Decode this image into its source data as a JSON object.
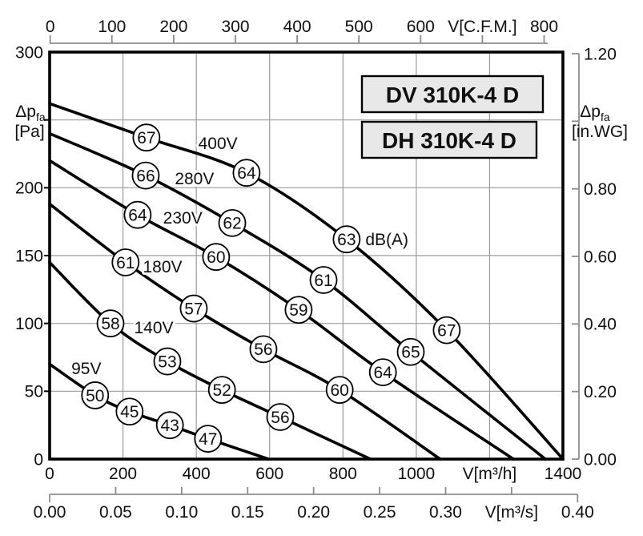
{
  "header": {
    "models": [
      "DV 310K-4 D",
      "DH 310K-4 D"
    ]
  },
  "chart_data": {
    "type": "line",
    "description": "Fan performance curves: pressure drop vs. volume flow for six supply voltages, with sound level markers",
    "noise_unit_label": "dB(A)",
    "axes": {
      "top": {
        "unit": "C.F.M.",
        "values": [
          0,
          100,
          200,
          300,
          400,
          500,
          600,
          700,
          800
        ],
        "labels": [
          "0",
          "100",
          "200",
          "300",
          "400",
          "500",
          "600",
          "V[C.F.M.]",
          "800"
        ]
      },
      "left": {
        "unit": "Pa",
        "title_main": "Δp",
        "title_sub": "fa",
        "title_unit": "[Pa]",
        "values": [
          0,
          50,
          100,
          150,
          200,
          250,
          300
        ],
        "labels": [
          "0",
          "50",
          "100",
          "150",
          "200",
          "",
          "300"
        ],
        "range": [
          0,
          300
        ]
      },
      "right": {
        "unit": "in.WG",
        "title_main": "Δp",
        "title_sub": "fa",
        "title_unit": "[in.WG]",
        "values": [
          0,
          0.2,
          0.4,
          0.6,
          0.8,
          1.0,
          1.2
        ],
        "labels": [
          "0.00",
          "0.20",
          "0.40",
          "0.60",
          "0.80",
          "",
          "1.20"
        ],
        "range": [
          0,
          1.2
        ]
      },
      "bottom": {
        "unit": "m³/h",
        "values": [
          0,
          200,
          400,
          600,
          800,
          1000,
          1200,
          1400
        ],
        "labels": [
          "0",
          "200",
          "400",
          "600",
          "800",
          "1000",
          "V[m³/h]",
          "1400"
        ],
        "range": [
          0,
          1400
        ]
      },
      "bottom2": {
        "unit": "m³/s",
        "values": [
          0,
          0.05,
          0.1,
          0.15,
          0.2,
          0.25,
          0.3,
          0.35,
          0.4
        ],
        "labels": [
          "0.00",
          "0.05",
          "0.10",
          "0.15",
          "0.20",
          "0.25",
          "0.30",
          "V[m³/s]",
          "0.40"
        ]
      }
    },
    "grid": {
      "vertical_m3h": [
        200,
        400,
        600,
        800,
        1000,
        1200
      ],
      "horizontal_pa": [
        50,
        100,
        150,
        200,
        250
      ]
    },
    "series": [
      {
        "name": "400V",
        "label_at": [
          459,
          233
        ],
        "points": [
          [
            0,
            262
          ],
          [
            264,
            237
          ],
          [
            537,
            211
          ],
          [
            810,
            162
          ],
          [
            1083,
            95
          ],
          [
            1400,
            0
          ]
        ],
        "markers": [
          {
            "v": 264,
            "p": 237,
            "db": 67
          },
          {
            "v": 537,
            "p": 211,
            "db": 64
          },
          {
            "v": 810,
            "p": 162,
            "db": 63,
            "suffix": "dB(A)"
          },
          {
            "v": 1083,
            "p": 95,
            "db": 67
          }
        ]
      },
      {
        "name": "280V",
        "label_at": [
          395,
          207
        ],
        "points": [
          [
            0,
            240
          ],
          [
            262,
            209
          ],
          [
            498,
            174
          ],
          [
            747,
            132
          ],
          [
            985,
            79
          ],
          [
            1352,
            0
          ]
        ],
        "markers": [
          {
            "v": 262,
            "p": 209,
            "db": 66
          },
          {
            "v": 498,
            "p": 174,
            "db": 62
          },
          {
            "v": 747,
            "p": 132,
            "db": 61
          },
          {
            "v": 985,
            "p": 79,
            "db": 65
          }
        ]
      },
      {
        "name": "230V",
        "label_at": [
          363,
          178
        ],
        "points": [
          [
            0,
            220
          ],
          [
            240,
            180
          ],
          [
            454,
            149
          ],
          [
            679,
            110
          ],
          [
            909,
            64
          ],
          [
            1265,
            0
          ]
        ],
        "markers": [
          {
            "v": 240,
            "p": 180,
            "db": 64
          },
          {
            "v": 454,
            "p": 149,
            "db": 60
          },
          {
            "v": 679,
            "p": 110,
            "db": 59
          },
          {
            "v": 909,
            "p": 64,
            "db": 64
          }
        ]
      },
      {
        "name": "180V",
        "label_at": [
          308,
          142
        ],
        "points": [
          [
            0,
            188
          ],
          [
            207,
            145
          ],
          [
            393,
            111
          ],
          [
            583,
            81
          ],
          [
            791,
            51
          ],
          [
            1065,
            0
          ]
        ],
        "markers": [
          {
            "v": 207,
            "p": 145,
            "db": 61
          },
          {
            "v": 393,
            "p": 111,
            "db": 57
          },
          {
            "v": 583,
            "p": 81,
            "db": 56
          },
          {
            "v": 791,
            "p": 51,
            "db": 60
          }
        ]
      },
      {
        "name": "140V",
        "label_at": [
          284,
          97
        ],
        "points": [
          [
            0,
            145
          ],
          [
            166,
            100
          ],
          [
            321,
            72
          ],
          [
            470,
            51
          ],
          [
            629,
            31
          ],
          [
            875,
            0
          ]
        ],
        "markers": [
          {
            "v": 166,
            "p": 100,
            "db": 58
          },
          {
            "v": 321,
            "p": 72,
            "db": 53
          },
          {
            "v": 470,
            "p": 51,
            "db": 52
          },
          {
            "v": 629,
            "p": 31,
            "db": 56
          }
        ]
      },
      {
        "name": "95V",
        "label_at": [
          100,
          67
        ],
        "points": [
          [
            0,
            70
          ],
          [
            124,
            47
          ],
          [
            218,
            35
          ],
          [
            328,
            25
          ],
          [
            432,
            15
          ],
          [
            597,
            0
          ]
        ],
        "markers": [
          {
            "v": 124,
            "p": 47,
            "db": 50
          },
          {
            "v": 218,
            "p": 35,
            "db": 45
          },
          {
            "v": 328,
            "p": 25,
            "db": 43
          },
          {
            "v": 432,
            "p": 15,
            "db": 47
          }
        ]
      }
    ]
  }
}
